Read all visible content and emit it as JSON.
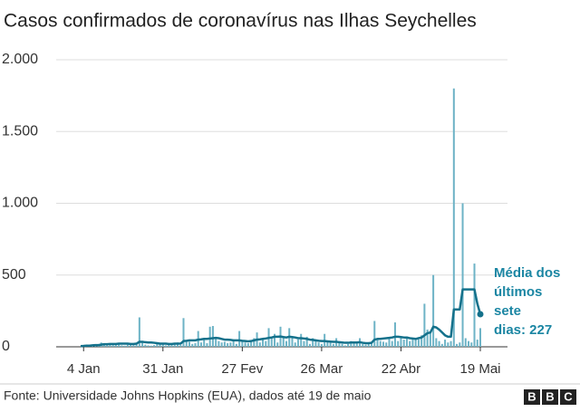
{
  "chart_data": {
    "type": "bar",
    "title": "Casos confirmados de coronavírus nas Ilhas Seychelles",
    "categories": [
      null,
      "4 Jan",
      null,
      null,
      null,
      null,
      null,
      null,
      null,
      null,
      null,
      null,
      null,
      null,
      null,
      null,
      null,
      null,
      null,
      null,
      null,
      null,
      null,
      null,
      null,
      null,
      null,
      null,
      "31 Jan",
      null,
      null,
      null,
      null,
      null,
      null,
      null,
      null,
      null,
      null,
      null,
      null,
      null,
      null,
      null,
      null,
      null,
      null,
      null,
      null,
      null,
      null,
      null,
      null,
      null,
      null,
      "27 Fev",
      null,
      null,
      null,
      null,
      null,
      null,
      null,
      null,
      null,
      null,
      null,
      null,
      null,
      null,
      null,
      null,
      null,
      null,
      null,
      null,
      null,
      null,
      null,
      null,
      null,
      null,
      "26 Mar",
      null,
      null,
      null,
      null,
      null,
      null,
      null,
      null,
      null,
      null,
      null,
      null,
      null,
      null,
      null,
      null,
      null,
      null,
      null,
      null,
      null,
      null,
      null,
      null,
      null,
      null,
      "22 Abr",
      null,
      null,
      null,
      null,
      null,
      null,
      null,
      null,
      null,
      null,
      null,
      null,
      null,
      null,
      null,
      null,
      null,
      null,
      null,
      null,
      null,
      null,
      null,
      null,
      null,
      null,
      "19 Mai"
    ],
    "series": [
      {
        "type": "bar",
        "color": "#6db3c6",
        "values": [
          0,
          2,
          5,
          3,
          10,
          8,
          6,
          30,
          20,
          15,
          25,
          12,
          18,
          22,
          10,
          8,
          15,
          20,
          12,
          25,
          205,
          30,
          15,
          10,
          8,
          12,
          20,
          18,
          25,
          10,
          15,
          22,
          18,
          30,
          12,
          200,
          40,
          35,
          20,
          25,
          110,
          30,
          50,
          25,
          140,
          145,
          60,
          40,
          30,
          35,
          25,
          30,
          40,
          20,
          110,
          35,
          30,
          25,
          40,
          60,
          100,
          30,
          50,
          40,
          130,
          60,
          90,
          30,
          140,
          70,
          40,
          130,
          60,
          30,
          50,
          90,
          40,
          70,
          20,
          60,
          50,
          30,
          20,
          90,
          40,
          30,
          20,
          60,
          30,
          20,
          10,
          20,
          40,
          30,
          25,
          60,
          20,
          15,
          30,
          30,
          180,
          50,
          40,
          35,
          30,
          60,
          40,
          170,
          40,
          60,
          50,
          70,
          40,
          60,
          60,
          50,
          80,
          300,
          120,
          100,
          500,
          60,
          40,
          20,
          50,
          30,
          40,
          1800,
          20,
          30,
          1000,
          60,
          40,
          30,
          580,
          50,
          130
        ]
      },
      {
        "type": "line",
        "color": "#14718b",
        "values": [
          5,
          6,
          8,
          8,
          10,
          12,
          12,
          15,
          18,
          18,
          20,
          20,
          20,
          22,
          22,
          22,
          22,
          20,
          20,
          22,
          35,
          35,
          32,
          30,
          30,
          28,
          25,
          22,
          22,
          22,
          20,
          20,
          22,
          22,
          22,
          40,
          42,
          45,
          45,
          45,
          50,
          52,
          55,
          55,
          58,
          60,
          62,
          60,
          55,
          50,
          50,
          48,
          45,
          45,
          45,
          42,
          40,
          38,
          40,
          45,
          50,
          52,
          55,
          58,
          62,
          65,
          70,
          70,
          72,
          68,
          65,
          70,
          68,
          65,
          60,
          60,
          58,
          55,
          50,
          48,
          45,
          42,
          40,
          40,
          38,
          36,
          35,
          35,
          32,
          30,
          28,
          28,
          30,
          30,
          30,
          32,
          28,
          25,
          25,
          28,
          50,
          55,
          55,
          58,
          60,
          62,
          65,
          70,
          70,
          68,
          65,
          65,
          60,
          58,
          55,
          60,
          65,
          80,
          95,
          100,
          140,
          135,
          120,
          100,
          80,
          70,
          70,
          260,
          260,
          260,
          400,
          400,
          400,
          400,
          400,
          300,
          227
        ]
      }
    ],
    "ylim": [
      0,
      2000
    ],
    "yticks": [
      0,
      500,
      {
        "value": 1000,
        "label": "1.000"
      },
      {
        "value": 1500,
        "label": "1.500"
      },
      {
        "value": 2000,
        "label": "2.000"
      }
    ],
    "grid": true,
    "annotation": [
      "Média dos",
      "últimos",
      "sete",
      "dias: 227"
    ],
    "source": "Fonte: Universidade Johns Hopkins (EUA), dados até 19 de maio",
    "logo": [
      "B",
      "B",
      "C"
    ]
  }
}
